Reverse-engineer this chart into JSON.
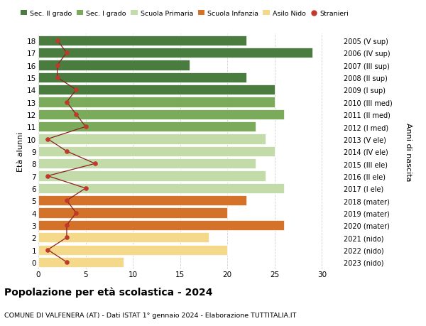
{
  "ages": [
    18,
    17,
    16,
    15,
    14,
    13,
    12,
    11,
    10,
    9,
    8,
    7,
    6,
    5,
    4,
    3,
    2,
    1,
    0
  ],
  "right_labels": [
    "2005 (V sup)",
    "2006 (IV sup)",
    "2007 (III sup)",
    "2008 (II sup)",
    "2009 (I sup)",
    "2010 (III med)",
    "2011 (II med)",
    "2012 (I med)",
    "2013 (V ele)",
    "2014 (IV ele)",
    "2015 (III ele)",
    "2016 (II ele)",
    "2017 (I ele)",
    "2018 (mater)",
    "2019 (mater)",
    "2020 (mater)",
    "2021 (nido)",
    "2022 (nido)",
    "2023 (nido)"
  ],
  "bar_values": [
    22,
    29,
    16,
    22,
    25,
    25,
    26,
    23,
    24,
    25,
    23,
    24,
    26,
    22,
    20,
    26,
    18,
    20,
    9
  ],
  "bar_colors": [
    "#4a7c40",
    "#4a7c40",
    "#4a7c40",
    "#4a7c40",
    "#4a7c40",
    "#7aaa5a",
    "#7aaa5a",
    "#7aaa5a",
    "#c2dba8",
    "#c2dba8",
    "#c2dba8",
    "#c2dba8",
    "#c2dba8",
    "#d4722a",
    "#d4722a",
    "#d4722a",
    "#f5d98b",
    "#f5d98b",
    "#f5d98b"
  ],
  "stranieri_values": [
    2,
    3,
    2,
    2,
    4,
    3,
    4,
    5,
    1,
    3,
    6,
    1,
    5,
    3,
    4,
    3,
    3,
    1,
    3
  ],
  "legend_labels": [
    "Sec. II grado",
    "Sec. I grado",
    "Scuola Primaria",
    "Scuola Infanzia",
    "Asilo Nido",
    "Stranieri"
  ],
  "legend_colors": [
    "#4a7c40",
    "#7aaa5a",
    "#c2dba8",
    "#d4722a",
    "#f5d98b",
    "#c0392b"
  ],
  "title_bold": "Popolazione per età scolastica - 2024",
  "subtitle": "COMUNE DI VALFENERA (AT) - Dati ISTAT 1° gennaio 2024 - Elaborazione TUTTITALIA.IT",
  "ylabel_left": "Età alunni",
  "ylabel_right": "Anni di nascita",
  "xlim": [
    0,
    32
  ],
  "ylim": [
    -0.55,
    18.55
  ],
  "bg_color": "#ffffff",
  "grid_color": "#d0d0d0",
  "bar_height": 0.82,
  "stranieri_line_color": "#8b2020",
  "stranieri_dot_color": "#c0392b",
  "stranieri_dot_size": 14
}
